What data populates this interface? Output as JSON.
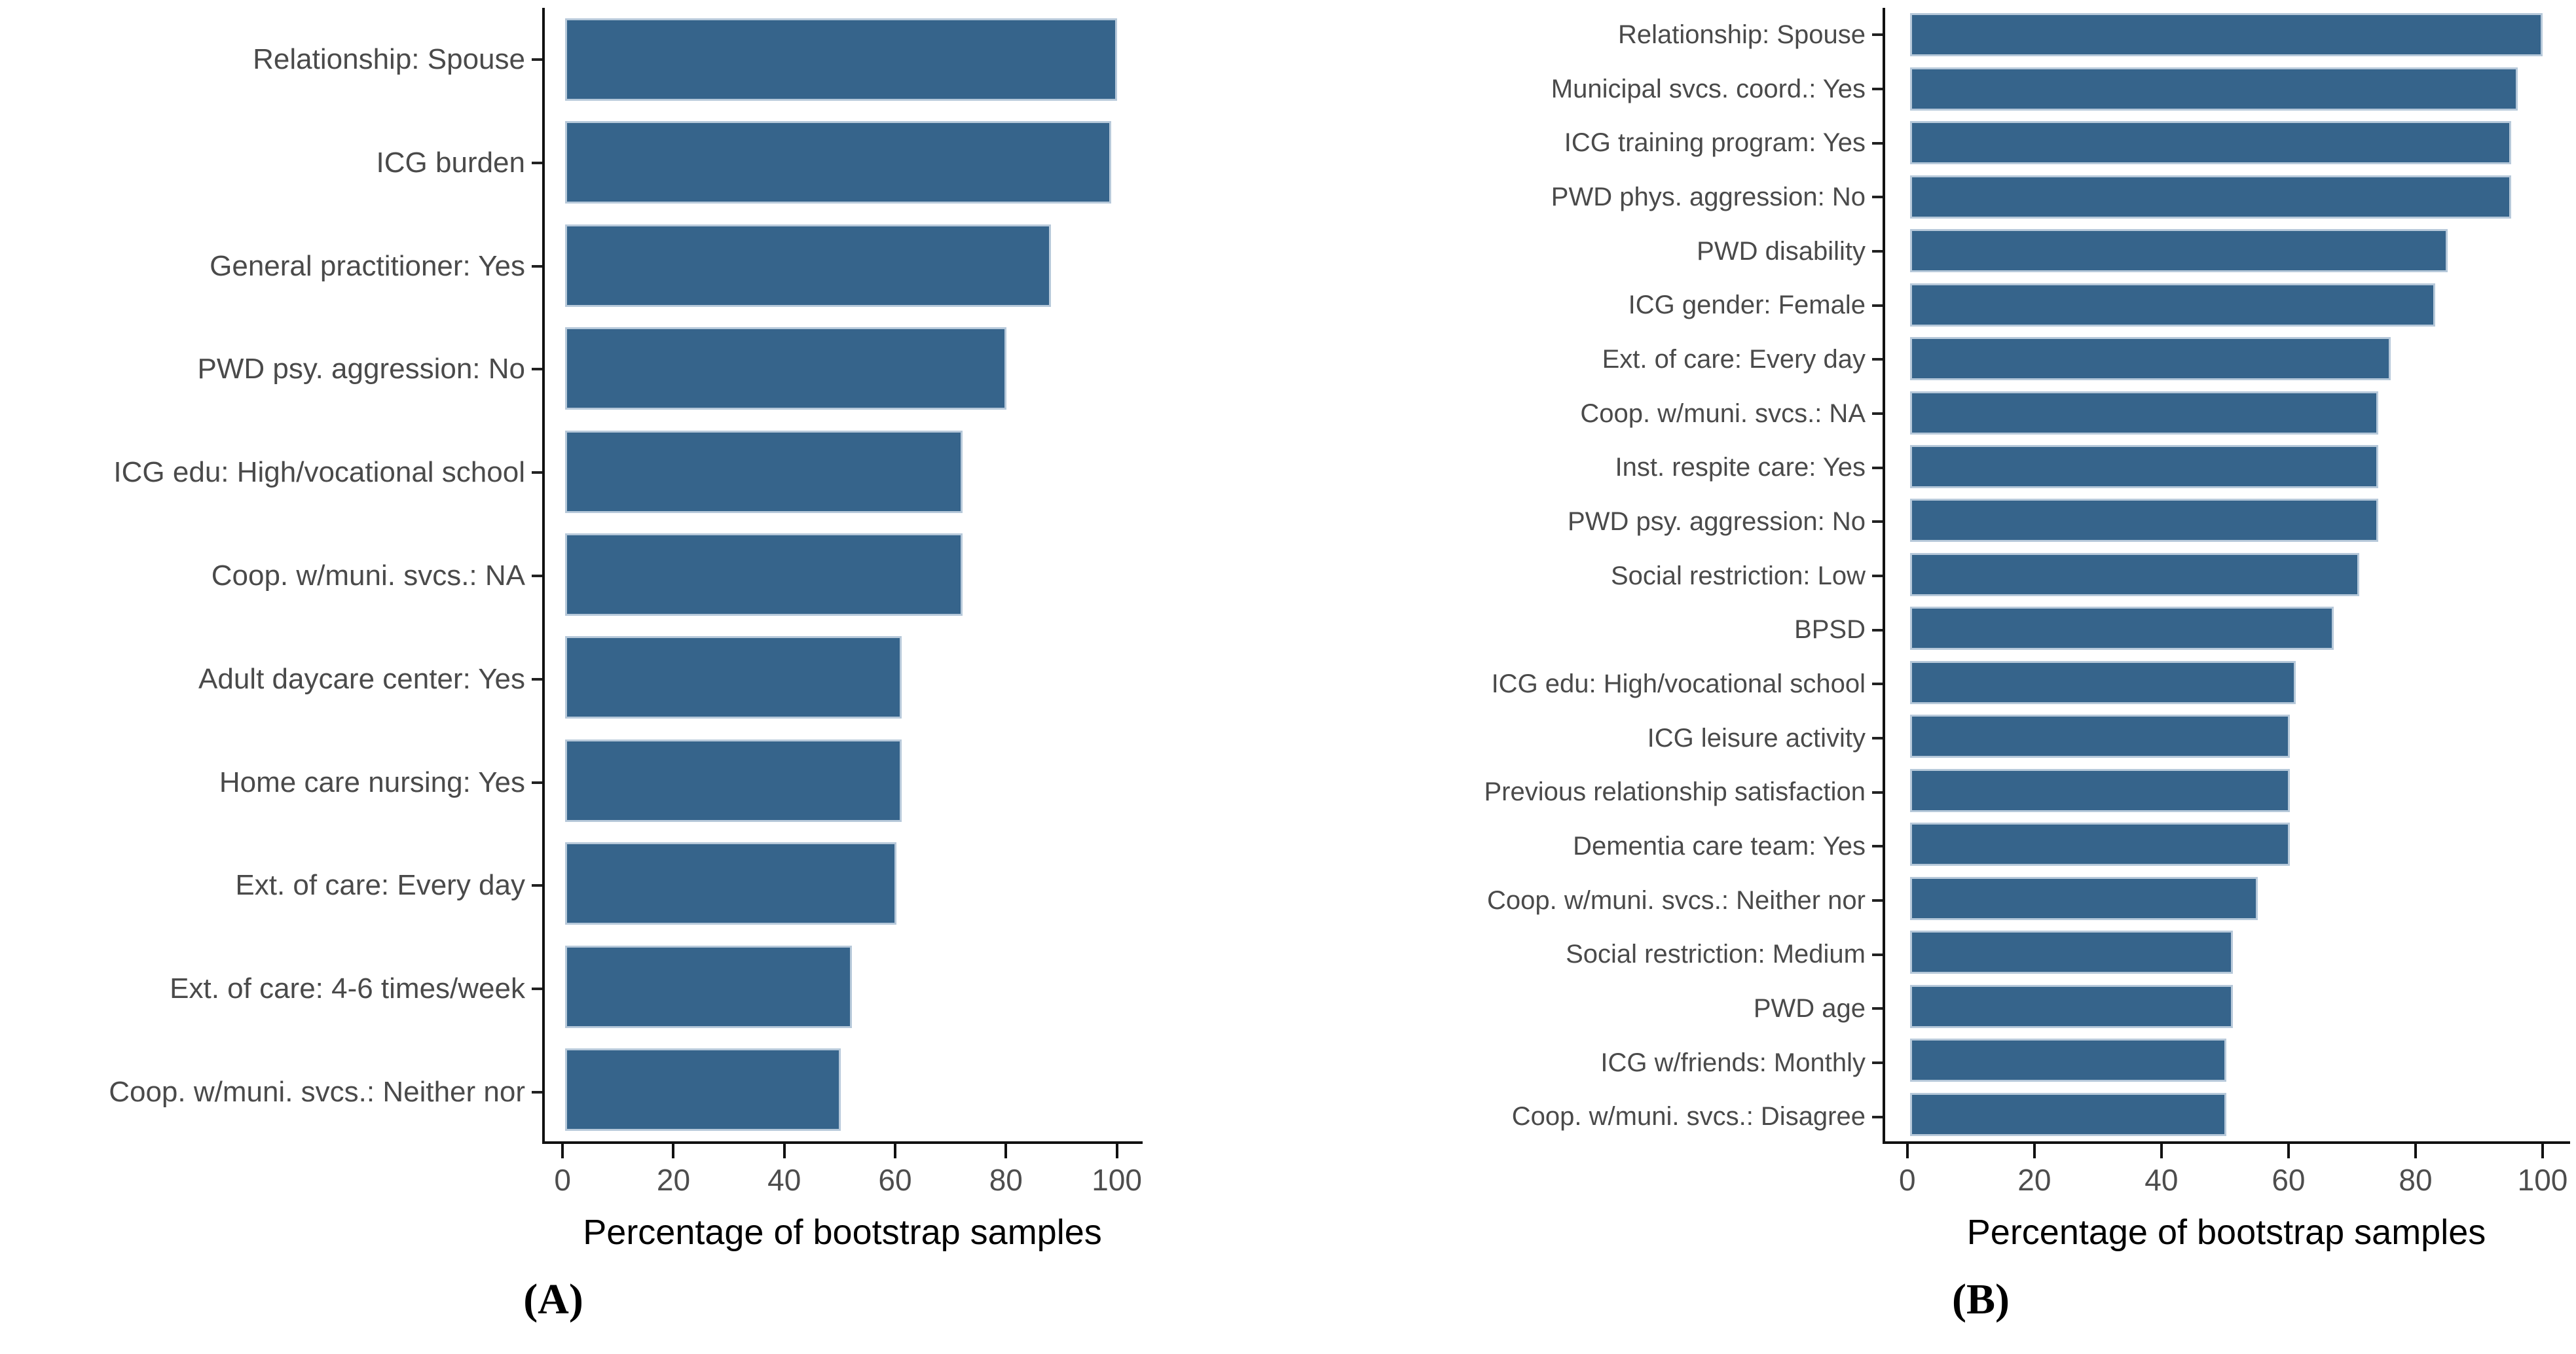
{
  "figure": {
    "background": "#ffffff",
    "bar_color": "#36648b",
    "bar_edge_color": "#b7c9da",
    "axis_color": "#111111",
    "text_color": "#4a4a4a"
  },
  "chart_data": [
    {
      "id": "A",
      "type": "bar",
      "orientation": "horizontal",
      "panel_label": "(A)",
      "xlabel": "Percentage of bootstrap samples",
      "xlim": [
        0,
        100
      ],
      "x_ticks": [
        0,
        20,
        40,
        60,
        80,
        100
      ],
      "grid": false,
      "legend": false,
      "bar_color": "#36648b",
      "categories": [
        "Relationship: Spouse",
        "ICG burden",
        "General practitioner: Yes",
        "PWD psy. aggression: No",
        "ICG edu: High/vocational school",
        "Coop. w/muni. svcs.: NA",
        "Adult daycare center: Yes",
        "Home care nursing: Yes",
        "Ext. of care: Every day",
        "Ext. of care: 4-6 times/week",
        "Coop. w/muni. svcs.: Neither nor"
      ],
      "values": [
        100,
        99,
        88,
        80,
        72,
        72,
        61,
        61,
        60,
        52,
        50
      ]
    },
    {
      "id": "B",
      "type": "bar",
      "orientation": "horizontal",
      "panel_label": "(B)",
      "xlabel": "Percentage of bootstrap samples",
      "xlim": [
        0,
        100
      ],
      "x_ticks": [
        0,
        20,
        40,
        60,
        80,
        100
      ],
      "grid": false,
      "legend": false,
      "bar_color": "#36648b",
      "categories": [
        "Relationship: Spouse",
        "Municipal svcs. coord.: Yes",
        "ICG training program: Yes",
        "PWD phys. aggression: No",
        "PWD disability",
        "ICG gender: Female",
        "Ext. of care: Every day",
        "Coop. w/muni. svcs.: NA",
        "Inst. respite care: Yes",
        "PWD psy. aggression: No",
        "Social restriction: Low",
        "BPSD",
        "ICG edu: High/vocational school",
        "ICG leisure activity",
        "Previous relationship satisfaction",
        "Dementia care team: Yes",
        "Coop. w/muni. svcs.: Neither nor",
        "Social restriction: Medium",
        "PWD age",
        "ICG w/friends: Monthly",
        "Coop. w/muni. svcs.: Disagree"
      ],
      "values": [
        100,
        96,
        95,
        95,
        85,
        83,
        76,
        74,
        74,
        74,
        71,
        67,
        61,
        60,
        60,
        60,
        55,
        51,
        51,
        50,
        50
      ]
    }
  ]
}
